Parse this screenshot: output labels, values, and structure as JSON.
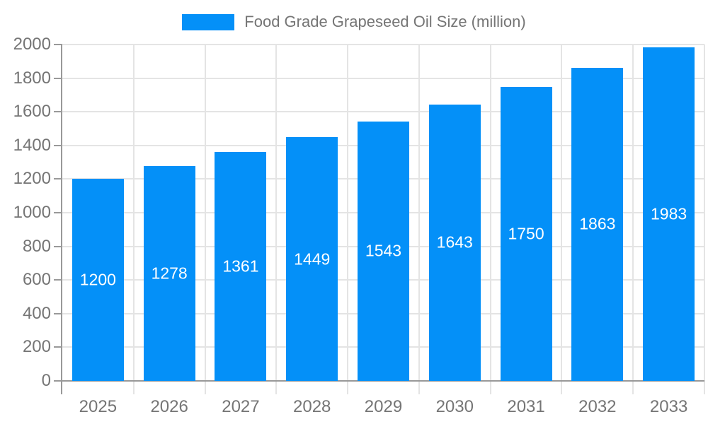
{
  "chart_data": {
    "type": "bar",
    "title": "Food Grade Grapeseed Oil Size (million)",
    "legend_entries": [
      "Food Grade Grapeseed Oil Size (million)"
    ],
    "legend_position": "top-center",
    "categories": [
      "2025",
      "2026",
      "2027",
      "2028",
      "2029",
      "2030",
      "2031",
      "2032",
      "2033"
    ],
    "values": [
      1200,
      1278,
      1361,
      1449,
      1543,
      1643,
      1750,
      1863,
      1983
    ],
    "value_label_position": "inside-center",
    "xlabel": "",
    "ylabel": "",
    "ylim": [
      0,
      2000
    ],
    "ytick_interval": 200,
    "yticks": [
      "0",
      "200",
      "400",
      "600",
      "800",
      "1000",
      "1200",
      "1400",
      "1600",
      "1800",
      "2000"
    ],
    "grid": true,
    "colors": {
      "bar": "#0490f8",
      "grid": "#e4e4e4",
      "axis": "#999999",
      "tick_text": "#757575",
      "value_text": "#ffffff",
      "background": "#ffffff"
    }
  }
}
